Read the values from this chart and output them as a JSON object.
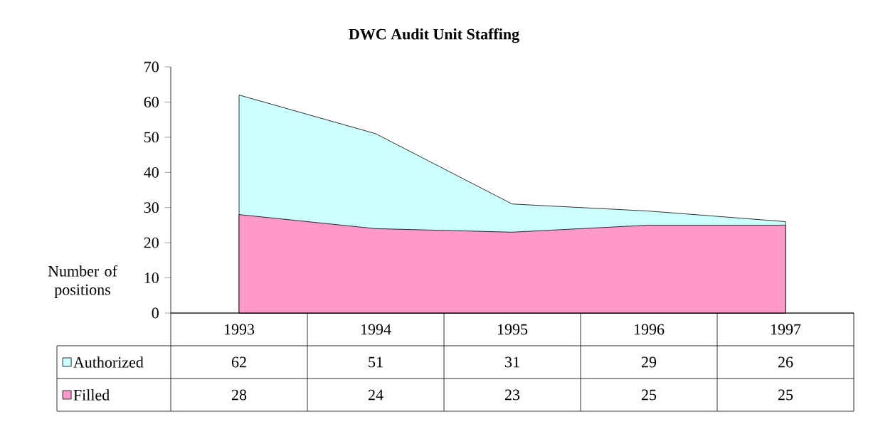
{
  "chart_data": {
    "type": "area",
    "title": "DWC Audit Unit Staffing",
    "ylabel": "Number of positions",
    "categories": [
      "1993",
      "1994",
      "1995",
      "1996",
      "1997"
    ],
    "series": [
      {
        "name": "Authorized",
        "color": "#ccffff",
        "values": [
          62,
          51,
          31,
          29,
          26
        ]
      },
      {
        "name": "Filled",
        "color": "#ff99cc",
        "values": [
          28,
          24,
          23,
          25,
          25
        ]
      }
    ],
    "ylim": [
      0,
      70
    ],
    "yticks": [
      0,
      10,
      20,
      30,
      40,
      50,
      60,
      70
    ],
    "data_labels": true,
    "legend": "bottom",
    "grid": false
  }
}
